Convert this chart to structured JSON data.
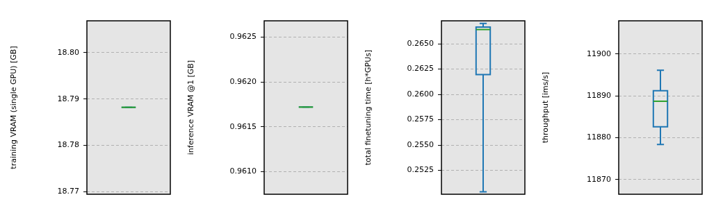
{
  "chart_data": [
    {
      "type": "box",
      "categories": [
        null
      ],
      "ylabel": "training VRAM (single GPU) [GB]",
      "ylim": [
        18.7694,
        18.8069
      ],
      "yticks": [
        {
          "value": 18.77,
          "label": "18.77"
        },
        {
          "value": 18.78,
          "label": "18.78"
        },
        {
          "value": 18.79,
          "label": "18.79"
        },
        {
          "value": 18.8,
          "label": "18.80"
        }
      ],
      "grid": "y",
      "tick_labels": "y",
      "series": [
        {
          "color": "#1f77b4",
          "boxes": [
            {
              "low": 18.7882,
              "q1": 18.7882,
              "median": 18.7882,
              "q3": 18.7882,
              "high": 18.7882
            }
          ]
        }
      ]
    },
    {
      "type": "box",
      "categories": [
        null
      ],
      "ylabel": "inference VRAM @1 [GB]",
      "ylim": [
        0.96075,
        0.96268
      ],
      "yticks": [
        {
          "value": 0.961,
          "label": "0.9610"
        },
        0.9615,
        {
          "value": 0.962,
          "label": "0.9620"
        },
        0.9625
      ],
      "grid": "y",
      "tick_labels": "y",
      "series": [
        {
          "color": "#1f77b4",
          "boxes": [
            {
              "low": 0.96172,
              "q1": 0.96172,
              "median": 0.96172,
              "q3": 0.96172,
              "high": 0.96172
            }
          ]
        }
      ]
    },
    {
      "type": "box",
      "categories": [
        null
      ],
      "ylabel": "total finetuning time [h*GPUs]",
      "ylim": [
        0.25014,
        0.26726
      ],
      "yticks": [
        0.2525,
        {
          "value": 0.255,
          "label": "0.2550"
        },
        0.2575,
        {
          "value": 0.26,
          "label": "0.2600"
        },
        0.2625,
        {
          "value": 0.265,
          "label": "0.2650"
        }
      ],
      "grid": "y",
      "tick_labels": "y",
      "series": [
        {
          "color": "#1f77b4",
          "boxes": [
            {
              "low": 0.25038,
              "q1": 0.26195,
              "median": 0.2664,
              "q3": 0.26664,
              "high": 0.26701
            }
          ]
        }
      ]
    },
    {
      "type": "box",
      "categories": [
        null
      ],
      "ylabel": "throughput [ims/s]",
      "ylim": [
        11866.5,
        11907.9
      ],
      "yticks": [
        11870,
        11880,
        11890,
        11900
      ],
      "grid": "y",
      "tick_labels": "y",
      "series": [
        {
          "color": "#1f77b4",
          "boxes": [
            {
              "low": 11878.4,
              "q1": 11882.6,
              "median": 11888.7,
              "q3": 11891.2,
              "high": 11896.1
            }
          ]
        }
      ]
    }
  ]
}
